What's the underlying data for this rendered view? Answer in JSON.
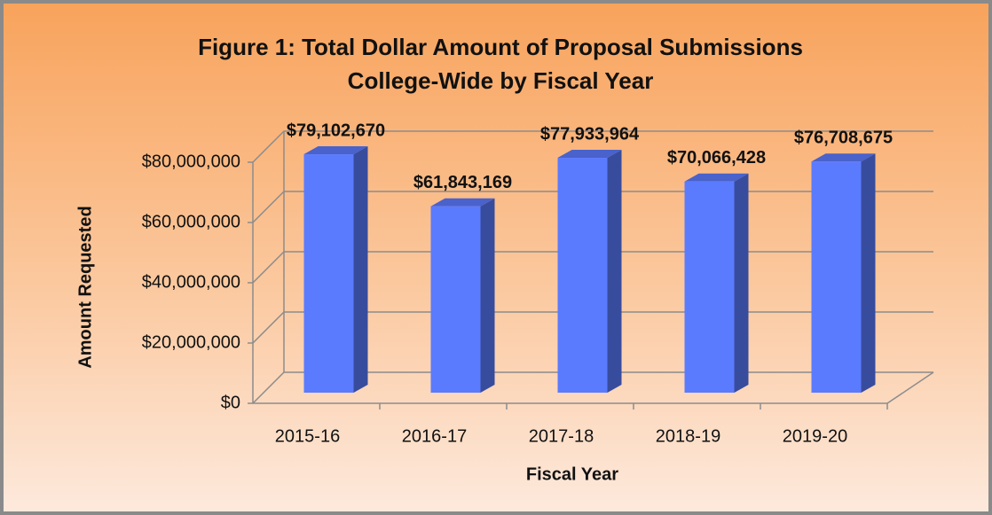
{
  "chart_data": {
    "type": "bar3d",
    "title": "Figure 1: Total Dollar Amount of Proposal Submissions College-Wide by Fiscal Year",
    "x_label": "Fiscal Year",
    "y_label": "Amount  Requested",
    "categories": [
      "2015-16",
      "2016-17",
      "2017-18",
      "2018-19",
      "2019-20"
    ],
    "values": [
      79102670,
      61843169,
      77933964,
      70066428,
      76708675
    ],
    "value_labels": [
      "$79,102,670",
      "$61,843,169",
      "$77,933,964",
      "$70,066,428",
      "$76,708,675"
    ],
    "color": "#5b7bff",
    "ylim": [
      0,
      80000000
    ],
    "yticks": [
      {
        "value": 0,
        "label": "$0"
      },
      {
        "value": 20000000,
        "label": "$20,000,000"
      },
      {
        "value": 40000000,
        "label": "$40,000,000"
      },
      {
        "value": 60000000,
        "label": "$60,000,000"
      },
      {
        "value": 80000000,
        "label": "$80,000,000"
      }
    ],
    "grid": true
  }
}
